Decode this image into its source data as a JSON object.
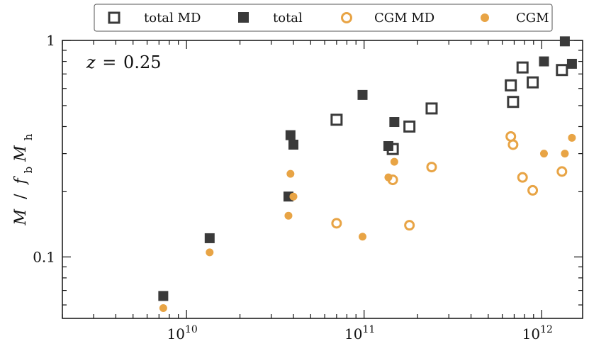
{
  "chart_data": {
    "type": "scatter",
    "title": "",
    "xscale": "log",
    "yscale": "log",
    "xlim": [
      2000000000.0,
      1700000000000.0
    ],
    "ylim": [
      0.052,
      1.0
    ],
    "xlabel": "",
    "ylabel": "M / f_b M_h",
    "ylabel_parts": {
      "m": "M",
      "slash": " / ",
      "f": "f",
      "f_sub": "b",
      "mh": "M",
      "mh_sub": "h"
    },
    "annotation": {
      "z_symbol": "z",
      "eq": "=",
      "value": "0.25"
    },
    "x_ticks": [
      {
        "value": 10000000000.0,
        "base": "10",
        "exp": "10"
      },
      {
        "value": 100000000000.0,
        "base": "10",
        "exp": "11"
      },
      {
        "value": 1000000000000.0,
        "base": "10",
        "exp": "12"
      }
    ],
    "y_ticks": [
      {
        "value": 0.1,
        "label": "0.1"
      },
      {
        "value": 1.0,
        "label": "1"
      }
    ],
    "series": [
      {
        "name": "total MD",
        "marker": "square-open",
        "color": "#3a3a3a",
        "points": [
          {
            "x": 70000000000.0,
            "y": 0.43
          },
          {
            "x": 145000000000.0,
            "y": 0.315
          },
          {
            "x": 180000000000.0,
            "y": 0.4
          },
          {
            "x": 240000000000.0,
            "y": 0.485
          },
          {
            "x": 670000000000.0,
            "y": 0.62
          },
          {
            "x": 690000000000.0,
            "y": 0.52
          },
          {
            "x": 780000000000.0,
            "y": 0.75
          },
          {
            "x": 890000000000.0,
            "y": 0.64
          },
          {
            "x": 1300000000000.0,
            "y": 0.73
          }
        ]
      },
      {
        "name": "total",
        "marker": "square",
        "color": "#3a3a3a",
        "points": [
          {
            "x": 7400000000.0,
            "y": 0.066
          },
          {
            "x": 13500000000.0,
            "y": 0.122
          },
          {
            "x": 37500000000.0,
            "y": 0.19
          },
          {
            "x": 38500000000.0,
            "y": 0.365
          },
          {
            "x": 40000000000.0,
            "y": 0.33
          },
          {
            "x": 98000000000.0,
            "y": 0.56
          },
          {
            "x": 137000000000.0,
            "y": 0.325
          },
          {
            "x": 148000000000.0,
            "y": 0.42
          },
          {
            "x": 1030000000000.0,
            "y": 0.8
          },
          {
            "x": 1350000000000.0,
            "y": 0.99
          },
          {
            "x": 1480000000000.0,
            "y": 0.78
          }
        ]
      },
      {
        "name": "CGM MD",
        "marker": "circle-open",
        "color": "#e8a445",
        "points": [
          {
            "x": 70000000000.0,
            "y": 0.143
          },
          {
            "x": 145000000000.0,
            "y": 0.227
          },
          {
            "x": 180000000000.0,
            "y": 0.14
          },
          {
            "x": 240000000000.0,
            "y": 0.26
          },
          {
            "x": 670000000000.0,
            "y": 0.36
          },
          {
            "x": 690000000000.0,
            "y": 0.33
          },
          {
            "x": 780000000000.0,
            "y": 0.233
          },
          {
            "x": 890000000000.0,
            "y": 0.203
          },
          {
            "x": 1300000000000.0,
            "y": 0.248
          }
        ]
      },
      {
        "name": "CGM",
        "marker": "circle",
        "color": "#e8a445",
        "points": [
          {
            "x": 7400000000.0,
            "y": 0.058
          },
          {
            "x": 13500000000.0,
            "y": 0.105
          },
          {
            "x": 37500000000.0,
            "y": 0.155
          },
          {
            "x": 38500000000.0,
            "y": 0.242
          },
          {
            "x": 40000000000.0,
            "y": 0.19
          },
          {
            "x": 98000000000.0,
            "y": 0.124
          },
          {
            "x": 137000000000.0,
            "y": 0.233
          },
          {
            "x": 148000000000.0,
            "y": 0.275
          },
          {
            "x": 1030000000000.0,
            "y": 0.3
          },
          {
            "x": 1350000000000.0,
            "y": 0.3
          },
          {
            "x": 1480000000000.0,
            "y": 0.355
          }
        ]
      }
    ],
    "legend": {
      "placement": "top-center",
      "entries": [
        "total MD",
        "total",
        "CGM MD",
        "CGM"
      ]
    },
    "grid": false
  }
}
